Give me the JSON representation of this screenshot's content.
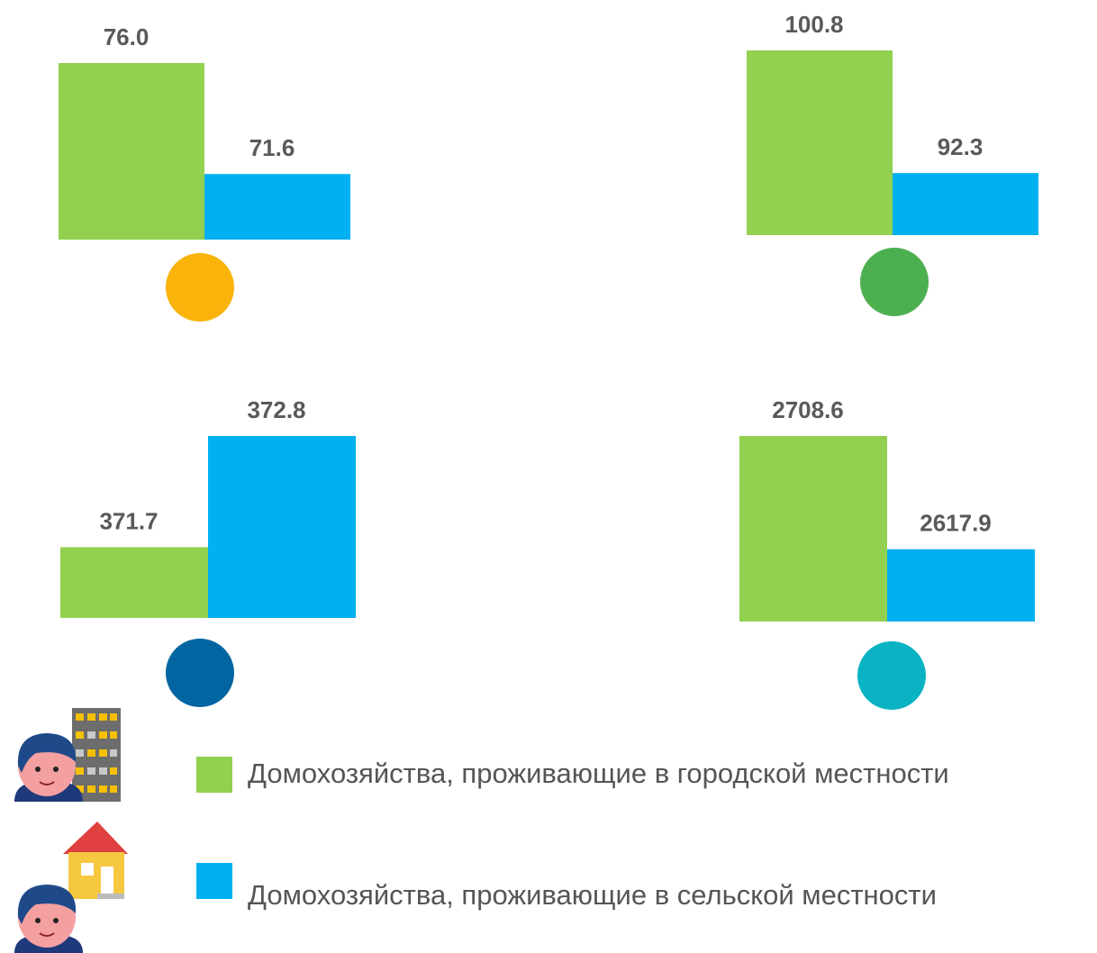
{
  "chart_data": [
    {
      "type": "bar",
      "marker_color": "#f9b30a",
      "ylim": [
        69,
        76
      ],
      "series": [
        {
          "color": "#92d050",
          "values": [
            76.0
          ],
          "value_labels": [
            "76.0"
          ]
        },
        {
          "color": "#00b0f0",
          "values": [
            71.6
          ]
        }
      ]
    },
    {
      "type": "bar",
      "marker_color": "#4caf50",
      "ylim": [
        88,
        100.8
      ],
      "series": [
        {
          "color": "#92d050",
          "values": [
            100.8
          ]
        },
        {
          "color": "#00b0f0",
          "values": [
            92.3
          ]
        }
      ]
    },
    {
      "type": "bar",
      "marker_color": "#0065a0",
      "ylim": [
        371,
        372.8
      ],
      "series": [
        {
          "color": "#92d050",
          "values": [
            371.7
          ]
        },
        {
          "color": "#00b0f0",
          "values": [
            372.8
          ]
        }
      ]
    },
    {
      "type": "bar",
      "marker_color": "#0ab3c4",
      "ylim": [
        2560,
        2708.6
      ],
      "series": [
        {
          "color": "#92d050",
          "values": [
            2708.6
          ]
        },
        {
          "color": "#00b0f0",
          "values": [
            2617.9
          ]
        }
      ]
    }
  ],
  "legend": [
    {
      "name": "Домохозяйства, проживающие в городской местности",
      "color": "#92d050"
    },
    {
      "name": "Домохозяйства, проживающие в сельской местности",
      "color": "#00b0f0"
    }
  ]
}
